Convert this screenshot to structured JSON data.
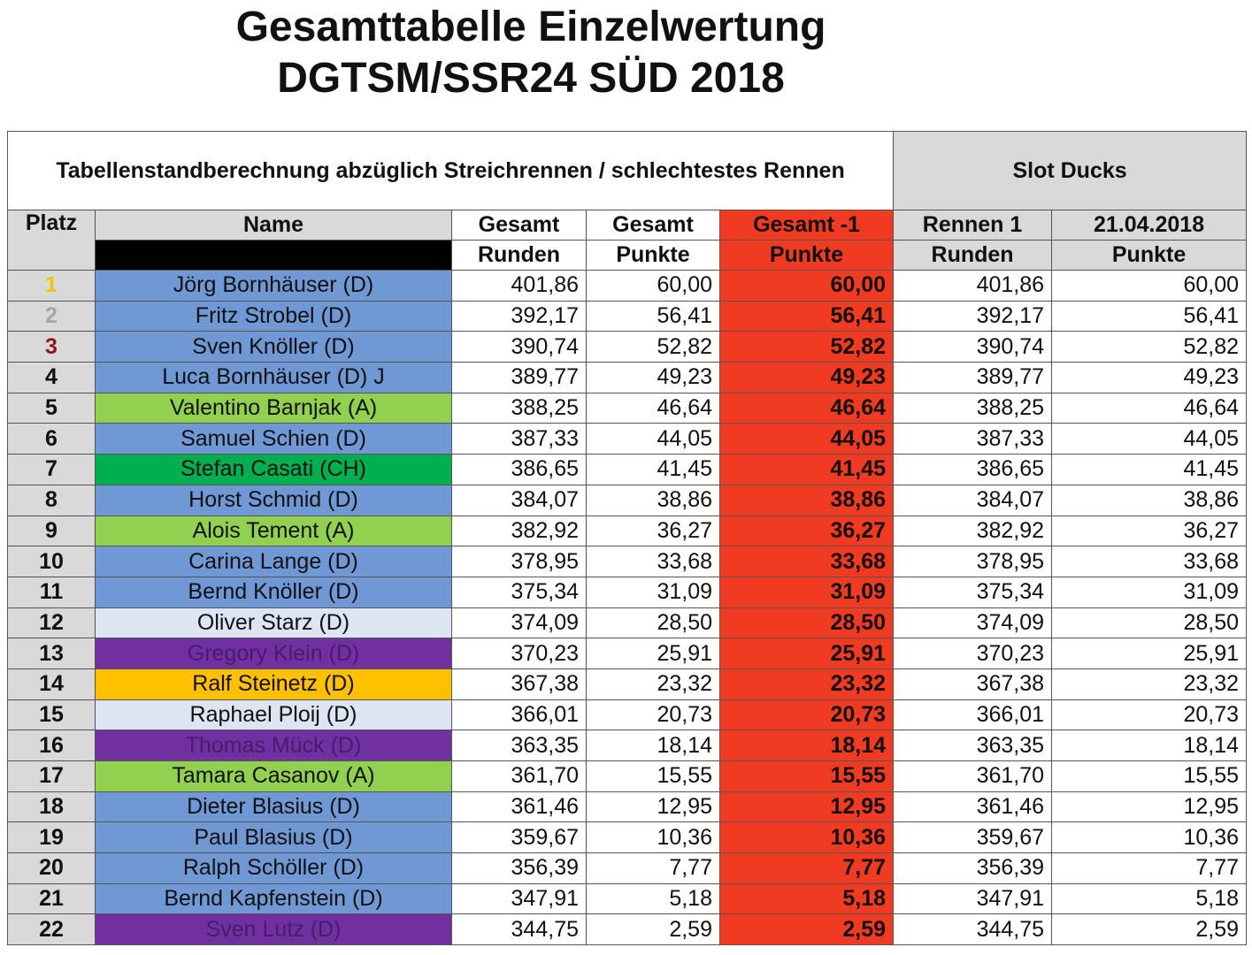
{
  "header": {
    "title_line1": "Gesamttabelle Einzelwertung",
    "title_line2": "DGTSM/SSR24 SÜD 2018"
  },
  "table": {
    "calculation_note": "Tabellenstandberechnung abzüglich Streichrennen / schlechtestes Rennen",
    "team_name": "Slot Ducks",
    "headers": {
      "platz": "Platz",
      "name": "Name",
      "gesamt_runden_1": "Gesamt",
      "gesamt_runden_2": "Runden",
      "gesamt_punkte_1": "Gesamt",
      "gesamt_punkte_2": "Punkte",
      "gesamt_minus1_1": "Gesamt -1",
      "gesamt_minus1_2": "Punkte",
      "rennen1_1": "Rennen 1",
      "rennen1_2": "Runden",
      "date_1": "21.04.2018",
      "date_2": "Punkte"
    },
    "colors": {
      "red": "#f03a22",
      "gray": "#d9d9d9",
      "gold": "#f5c400",
      "silver": "#a6a6a6",
      "bronze": "#8b1a1a"
    },
    "rows": [
      {
        "platz": "1",
        "name": "Jörg Bornhäuser (D)",
        "gesamt_runden": "401,86",
        "gesamt_punkte": "60,00",
        "gesamt_minus1": "60,00",
        "rennen1_runden": "401,86",
        "rennen1_punkte": "60,00",
        "bg": "#6f98d4",
        "fg": "#111111",
        "platz_color": "#f5c400"
      },
      {
        "platz": "2",
        "name": "Fritz Strobel (D)",
        "gesamt_runden": "392,17",
        "gesamt_punkte": "56,41",
        "gesamt_minus1": "56,41",
        "rennen1_runden": "392,17",
        "rennen1_punkte": "56,41",
        "bg": "#6f98d4",
        "fg": "#111111",
        "platz_color": "#a6a6a6"
      },
      {
        "platz": "3",
        "name": "Sven Knöller (D)",
        "gesamt_runden": "390,74",
        "gesamt_punkte": "52,82",
        "gesamt_minus1": "52,82",
        "rennen1_runden": "390,74",
        "rennen1_punkte": "52,82",
        "bg": "#6f98d4",
        "fg": "#111111",
        "platz_color": "#8b1a1a"
      },
      {
        "platz": "4",
        "name": "Luca Bornhäuser (D) J",
        "gesamt_runden": "389,77",
        "gesamt_punkte": "49,23",
        "gesamt_minus1": "49,23",
        "rennen1_runden": "389,77",
        "rennen1_punkte": "49,23",
        "bg": "#6f98d4",
        "fg": "#111111",
        "platz_color": "#111111"
      },
      {
        "platz": "5",
        "name": "Valentino Barnjak (A)",
        "gesamt_runden": "388,25",
        "gesamt_punkte": "46,64",
        "gesamt_minus1": "46,64",
        "rennen1_runden": "388,25",
        "rennen1_punkte": "46,64",
        "bg": "#92d050",
        "fg": "#111111",
        "platz_color": "#111111"
      },
      {
        "platz": "6",
        "name": "Samuel Schien (D)",
        "gesamt_runden": "387,33",
        "gesamt_punkte": "44,05",
        "gesamt_minus1": "44,05",
        "rennen1_runden": "387,33",
        "rennen1_punkte": "44,05",
        "bg": "#6f98d4",
        "fg": "#111111",
        "platz_color": "#111111"
      },
      {
        "platz": "7",
        "name": "Stefan Casati (CH)",
        "gesamt_runden": "386,65",
        "gesamt_punkte": "41,45",
        "gesamt_minus1": "41,45",
        "rennen1_runden": "386,65",
        "rennen1_punkte": "41,45",
        "bg": "#00b050",
        "fg": "#111111",
        "platz_color": "#111111"
      },
      {
        "platz": "8",
        "name": "Horst Schmid (D)",
        "gesamt_runden": "384,07",
        "gesamt_punkte": "38,86",
        "gesamt_minus1": "38,86",
        "rennen1_runden": "384,07",
        "rennen1_punkte": "38,86",
        "bg": "#6f98d4",
        "fg": "#111111",
        "platz_color": "#111111"
      },
      {
        "platz": "9",
        "name": "Alois Tement (A)",
        "gesamt_runden": "382,92",
        "gesamt_punkte": "36,27",
        "gesamt_minus1": "36,27",
        "rennen1_runden": "382,92",
        "rennen1_punkte": "36,27",
        "bg": "#92d050",
        "fg": "#111111",
        "platz_color": "#111111"
      },
      {
        "platz": "10",
        "name": "Carina Lange (D)",
        "gesamt_runden": "378,95",
        "gesamt_punkte": "33,68",
        "gesamt_minus1": "33,68",
        "rennen1_runden": "378,95",
        "rennen1_punkte": "33,68",
        "bg": "#6f98d4",
        "fg": "#111111",
        "platz_color": "#111111"
      },
      {
        "platz": "11",
        "name": "Bernd Knöller (D)",
        "gesamt_runden": "375,34",
        "gesamt_punkte": "31,09",
        "gesamt_minus1": "31,09",
        "rennen1_runden": "375,34",
        "rennen1_punkte": "31,09",
        "bg": "#6f98d4",
        "fg": "#111111",
        "platz_color": "#111111"
      },
      {
        "platz": "12",
        "name": "Oliver Starz (D)",
        "gesamt_runden": "374,09",
        "gesamt_punkte": "28,50",
        "gesamt_minus1": "28,50",
        "rennen1_runden": "374,09",
        "rennen1_punkte": "28,50",
        "bg": "#dde4f2",
        "fg": "#111111",
        "platz_color": "#111111"
      },
      {
        "platz": "13",
        "name": "Gregory Klein (D)",
        "gesamt_runden": "370,23",
        "gesamt_punkte": "25,91",
        "gesamt_minus1": "25,91",
        "rennen1_runden": "370,23",
        "rennen1_punkte": "25,91",
        "bg": "#7030a0",
        "fg": "#4a1a6e",
        "platz_color": "#111111"
      },
      {
        "platz": "14",
        "name": "Ralf Steinetz (D)",
        "gesamt_runden": "367,38",
        "gesamt_punkte": "23,32",
        "gesamt_minus1": "23,32",
        "rennen1_runden": "367,38",
        "rennen1_punkte": "23,32",
        "bg": "#ffc000",
        "fg": "#111111",
        "platz_color": "#111111"
      },
      {
        "platz": "15",
        "name": "Raphael Ploij (D)",
        "gesamt_runden": "366,01",
        "gesamt_punkte": "20,73",
        "gesamt_minus1": "20,73",
        "rennen1_runden": "366,01",
        "rennen1_punkte": "20,73",
        "bg": "#dde4f2",
        "fg": "#111111",
        "platz_color": "#111111"
      },
      {
        "platz": "16",
        "name": "Thomas Mück (D)",
        "gesamt_runden": "363,35",
        "gesamt_punkte": "18,14",
        "gesamt_minus1": "18,14",
        "rennen1_runden": "363,35",
        "rennen1_punkte": "18,14",
        "bg": "#7030a0",
        "fg": "#4a1a6e",
        "platz_color": "#111111"
      },
      {
        "platz": "17",
        "name": "Tamara Casanov (A)",
        "gesamt_runden": "361,70",
        "gesamt_punkte": "15,55",
        "gesamt_minus1": "15,55",
        "rennen1_runden": "361,70",
        "rennen1_punkte": "15,55",
        "bg": "#92d050",
        "fg": "#111111",
        "platz_color": "#111111"
      },
      {
        "platz": "18",
        "name": "Dieter Blasius (D)",
        "gesamt_runden": "361,46",
        "gesamt_punkte": "12,95",
        "gesamt_minus1": "12,95",
        "rennen1_runden": "361,46",
        "rennen1_punkte": "12,95",
        "bg": "#6f98d4",
        "fg": "#111111",
        "platz_color": "#111111"
      },
      {
        "platz": "19",
        "name": "Paul Blasius (D)",
        "gesamt_runden": "359,67",
        "gesamt_punkte": "10,36",
        "gesamt_minus1": "10,36",
        "rennen1_runden": "359,67",
        "rennen1_punkte": "10,36",
        "bg": "#6f98d4",
        "fg": "#111111",
        "platz_color": "#111111"
      },
      {
        "platz": "20",
        "name": "Ralph Schöller (D)",
        "gesamt_runden": "356,39",
        "gesamt_punkte": "7,77",
        "gesamt_minus1": "7,77",
        "rennen1_runden": "356,39",
        "rennen1_punkte": "7,77",
        "bg": "#6f98d4",
        "fg": "#111111",
        "platz_color": "#111111"
      },
      {
        "platz": "21",
        "name": "Bernd Kapfenstein (D)",
        "gesamt_runden": "347,91",
        "gesamt_punkte": "5,18",
        "gesamt_minus1": "5,18",
        "rennen1_runden": "347,91",
        "rennen1_punkte": "5,18",
        "bg": "#6f98d4",
        "fg": "#111111",
        "platz_color": "#111111"
      },
      {
        "platz": "22",
        "name": "Sven Lutz (D)",
        "gesamt_runden": "344,75",
        "gesamt_punkte": "2,59",
        "gesamt_minus1": "2,59",
        "rennen1_runden": "344,75",
        "rennen1_punkte": "2,59",
        "bg": "#7030a0",
        "fg": "#4a1a6e",
        "platz_color": "#111111"
      }
    ]
  }
}
